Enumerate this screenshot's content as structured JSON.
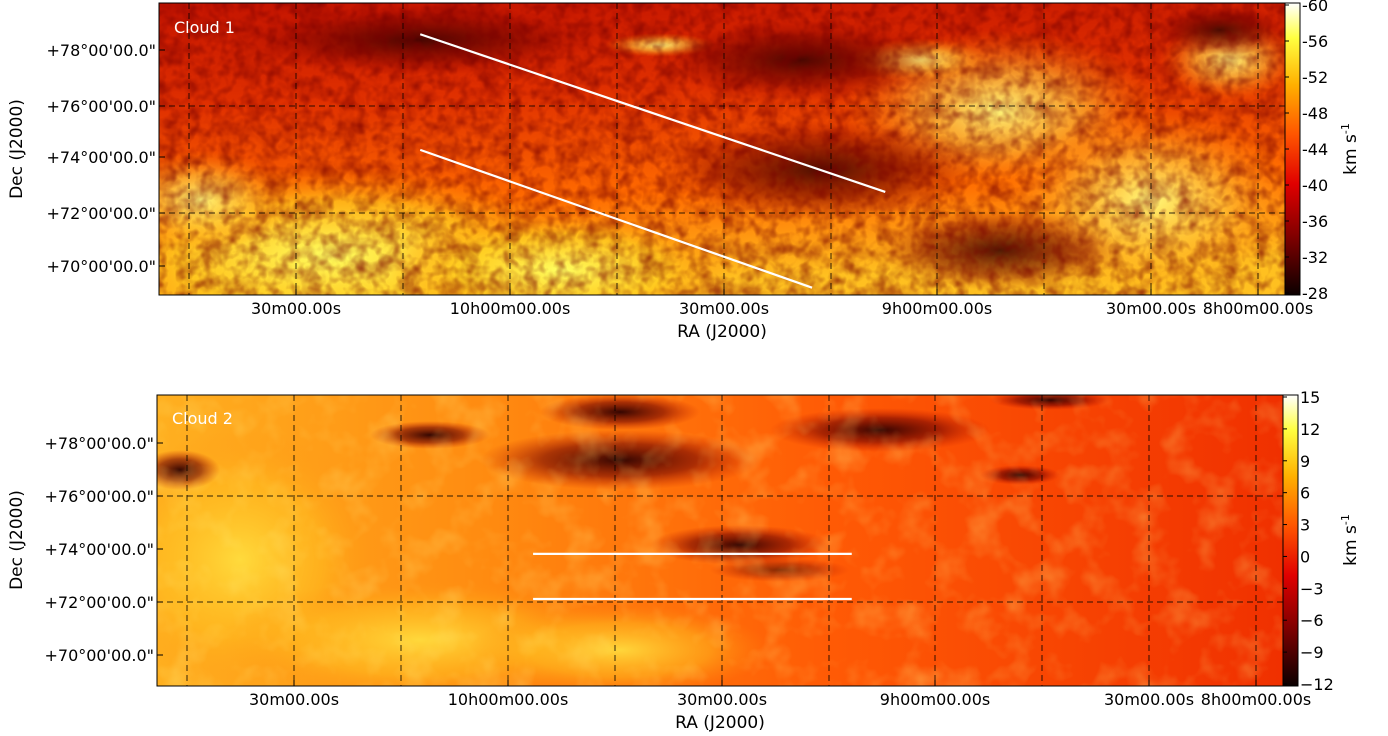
{
  "chart_data": [
    {
      "type": "heatmap",
      "panel_label": "Cloud 1",
      "xlabel": "RA (J2000)",
      "ylabel": "Dec (J2000)",
      "x_tick_labels": [
        "30m00.00s",
        "10h00m00.00s",
        "30m00.00s",
        "9h00m00.00s",
        "30m00.00s",
        "8h00m00.00s"
      ],
      "y_tick_labels": [
        "+78°00'00.0\"",
        "+76°00'00.0\"",
        "+74°00'00.0\"",
        "+72°00'00.0\"",
        "+70°00'00.0\""
      ],
      "colorbar": {
        "label": "km s",
        "label_superscript": "-1",
        "tick_labels": [
          "-60",
          "-56",
          "-52",
          "-48",
          "-44",
          "-40",
          "-36",
          "-32",
          "-28"
        ],
        "range": [
          -28,
          -62
        ],
        "colormap": "hot"
      },
      "grid": true,
      "cuts": [
        {
          "from": {
            "ra": "10h02m",
            "dec": 78.8
          },
          "to": {
            "ra": "8h55m",
            "dec": 72.7
          }
        },
        {
          "from": {
            "ra": "10h02m",
            "dec": 74.4
          },
          "to": {
            "ra": "9h00m",
            "dec": 69.0
          }
        }
      ]
    },
    {
      "type": "heatmap",
      "panel_label": "Cloud 2",
      "xlabel": "RA (J2000)",
      "ylabel": "Dec (J2000)",
      "x_tick_labels": [
        "30m00.00s",
        "10h00m00.00s",
        "30m00.00s",
        "9h00m00.00s",
        "30m00.00s",
        "8h00m00.00s"
      ],
      "y_tick_labels": [
        "+78°00'00.0\"",
        "+76°00'00.0\"",
        "+74°00'00.0\"",
        "+72°00'00.0\"",
        "+70°00'00.0\""
      ],
      "colorbar": {
        "label": "km s",
        "label_superscript": "-1",
        "tick_labels": [
          "15",
          "12",
          "9",
          "6",
          "3",
          "0",
          "−3",
          "−6",
          "−9",
          "−12"
        ],
        "range": [
          -12,
          15
        ],
        "colormap": "hot"
      },
      "grid": true,
      "cuts": [
        {
          "from": {
            "ra": "9h45m",
            "dec": 73.8
          },
          "to": {
            "ra": "9h00m",
            "dec": 73.8
          }
        },
        {
          "from": {
            "ra": "9h45m",
            "dec": 72.2
          },
          "to": {
            "ra": "9h00m",
            "dec": 72.2
          }
        }
      ]
    }
  ]
}
